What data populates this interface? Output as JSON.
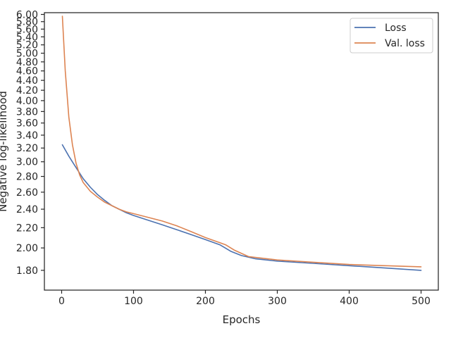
{
  "chart_data": {
    "type": "line",
    "title": "",
    "xlabel": "Epochs",
    "ylabel": "Negative log-likelihood",
    "xlim": [
      -24,
      524
    ],
    "ylim": [
      1.64,
      6.05
    ],
    "yscale": "log",
    "grid": false,
    "legend_position": "top-right",
    "x_ticks": [
      0,
      100,
      200,
      300,
      400,
      500
    ],
    "x_tick_labels": [
      "0",
      "100",
      "200",
      "300",
      "400",
      "500"
    ],
    "y_ticks": [
      1.8,
      2.0,
      2.2,
      2.4,
      2.6,
      2.8,
      3.0,
      3.2,
      3.4,
      3.6,
      3.8,
      4.0,
      4.2,
      4.4,
      4.6,
      4.8,
      5.0,
      5.2,
      5.4,
      5.6,
      5.8,
      6.0
    ],
    "y_tick_labels": [
      "1.80",
      "2.00",
      "2.20",
      "2.40",
      "2.60",
      "2.80",
      "3.00",
      "3.20",
      "3.40",
      "3.60",
      "3.80",
      "4.00",
      "4.20",
      "4.40",
      "4.60",
      "4.80",
      "5.00",
      "5.20",
      "5.40",
      "5.60",
      "5.80",
      "6.00"
    ],
    "series": [
      {
        "name": "Loss",
        "color": "#4c72b0",
        "x": [
          1,
          10,
          20,
          30,
          40,
          50,
          60,
          70,
          80,
          90,
          100,
          120,
          140,
          160,
          180,
          200,
          220,
          225,
          235,
          250,
          270,
          300,
          350,
          400,
          450,
          500
        ],
        "y": [
          3.25,
          3.08,
          2.92,
          2.77,
          2.66,
          2.57,
          2.5,
          2.44,
          2.4,
          2.36,
          2.33,
          2.28,
          2.23,
          2.18,
          2.13,
          2.08,
          2.03,
          2.01,
          1.97,
          1.93,
          1.9,
          1.88,
          1.86,
          1.84,
          1.82,
          1.8
        ]
      },
      {
        "name": "Val. loss",
        "color": "#dd8452",
        "x": [
          1,
          5,
          10,
          15,
          20,
          25,
          30,
          40,
          50,
          60,
          70,
          80,
          90,
          100,
          120,
          140,
          160,
          180,
          200,
          220,
          228,
          240,
          260,
          300,
          350,
          400,
          450,
          500
        ],
        "y": [
          5.95,
          4.6,
          3.7,
          3.25,
          2.98,
          2.82,
          2.72,
          2.61,
          2.54,
          2.48,
          2.44,
          2.4,
          2.37,
          2.35,
          2.31,
          2.27,
          2.22,
          2.16,
          2.1,
          2.05,
          2.03,
          1.98,
          1.92,
          1.89,
          1.87,
          1.85,
          1.84,
          1.83
        ]
      }
    ]
  }
}
